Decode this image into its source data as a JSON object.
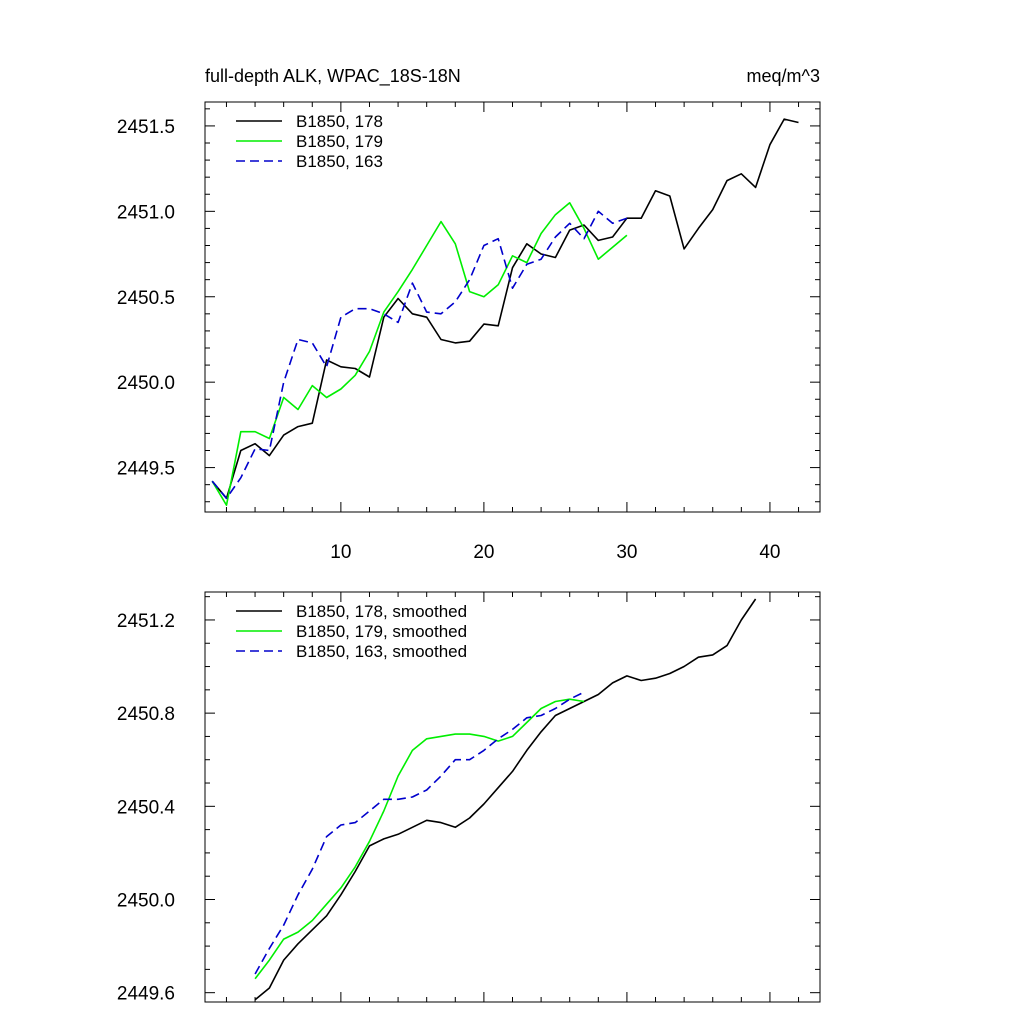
{
  "figure": {
    "title_left": "full-depth ALK, WPAC_18S-18N",
    "title_right": "meq/m^3"
  },
  "chart_data": [
    {
      "type": "line",
      "title": "full-depth ALK, WPAC_18S-18N",
      "units": "meq/m^3",
      "xlabel": "",
      "ylabel": "",
      "xlim": [
        0.5,
        43.5
      ],
      "ylim": [
        2449.24,
        2451.64
      ],
      "x_ticks": [
        10,
        20,
        30,
        40
      ],
      "x_tick_labels": [
        "10",
        "20",
        "30",
        "40"
      ],
      "x_minor_step": 2,
      "y_ticks": [
        2449.5,
        2450.0,
        2450.5,
        2451.0,
        2451.5
      ],
      "y_tick_labels": [
        "2449.5",
        "2450.0",
        "2450.5",
        "2451.0",
        "2451.5"
      ],
      "y_minor_step": 0.1,
      "grid": false,
      "legend_position": "top-left",
      "series": [
        {
          "name": "B1850, 178",
          "color": "#000000",
          "dash": "solid",
          "x": [
            1,
            2,
            3,
            4,
            5,
            6,
            7,
            8,
            9,
            10,
            11,
            12,
            13,
            14,
            15,
            16,
            17,
            18,
            19,
            20,
            21,
            22,
            23,
            24,
            25,
            26,
            27,
            28,
            29,
            30,
            31,
            32,
            33,
            34,
            35,
            36,
            37,
            38,
            39,
            40,
            41,
            42
          ],
          "values": [
            2449.42,
            2449.32,
            2449.6,
            2449.64,
            2449.57,
            2449.69,
            2449.74,
            2449.76,
            2450.13,
            2450.09,
            2450.08,
            2450.03,
            2450.38,
            2450.49,
            2450.4,
            2450.38,
            2450.25,
            2450.23,
            2450.24,
            2450.34,
            2450.33,
            2450.67,
            2450.81,
            2450.75,
            2450.73,
            2450.89,
            2450.92,
            2450.83,
            2450.85,
            2450.96,
            2450.96,
            2451.12,
            2451.09,
            2450.78,
            2450.9,
            2451.01,
            2451.18,
            2451.22,
            2451.14,
            2451.39,
            2451.54,
            2451.52
          ]
        },
        {
          "name": "B1850, 179",
          "color": "#00ee00",
          "dash": "solid",
          "x": [
            1,
            2,
            3,
            4,
            5,
            6,
            7,
            8,
            9,
            10,
            11,
            12,
            13,
            14,
            15,
            16,
            17,
            18,
            19,
            20,
            21,
            22,
            23,
            24,
            25,
            26,
            27,
            28,
            29,
            30
          ],
          "values": [
            2449.42,
            2449.28,
            2449.71,
            2449.71,
            2449.67,
            2449.91,
            2449.84,
            2449.98,
            2449.91,
            2449.96,
            2450.04,
            2450.18,
            2450.41,
            2450.53,
            2450.66,
            2450.8,
            2450.94,
            2450.81,
            2450.53,
            2450.5,
            2450.57,
            2450.74,
            2450.7,
            2450.87,
            2450.98,
            2451.05,
            2450.9,
            2450.72,
            2450.79,
            2450.86
          ]
        },
        {
          "name": "B1850, 163",
          "color": "#0000cc",
          "dash": "dashed",
          "x": [
            1,
            2,
            3,
            4,
            5,
            6,
            7,
            8,
            9,
            10,
            11,
            12,
            13,
            14,
            15,
            16,
            17,
            18,
            19,
            20,
            21,
            22,
            23,
            24,
            25,
            26,
            27,
            28,
            29,
            30
          ],
          "values": [
            2449.42,
            2449.32,
            2449.44,
            2449.61,
            2449.6,
            2450.0,
            2450.25,
            2450.23,
            2450.09,
            2450.38,
            2450.43,
            2450.43,
            2450.4,
            2450.35,
            2450.58,
            2450.41,
            2450.4,
            2450.47,
            2450.6,
            2450.8,
            2450.84,
            2450.55,
            2450.69,
            2450.72,
            2450.85,
            2450.93,
            2450.84,
            2451.0,
            2450.93,
            2450.96
          ]
        }
      ]
    },
    {
      "type": "line",
      "title": "",
      "xlabel": "",
      "ylabel": "",
      "xlim": [
        0.5,
        43.5
      ],
      "ylim": [
        2449.56,
        2451.32
      ],
      "x_ticks": [
        10,
        20,
        30,
        40
      ],
      "x_tick_labels": [],
      "x_minor_step": 2,
      "y_ticks": [
        2449.6,
        2450.0,
        2450.4,
        2450.8,
        2451.2
      ],
      "y_tick_labels": [
        "2449.6",
        "2450.0",
        "2450.4",
        "2450.8",
        "2451.2"
      ],
      "y_minor_step": 0.1,
      "grid": false,
      "legend_position": "top-left",
      "series": [
        {
          "name": "B1850, 178, smoothed",
          "color": "#000000",
          "dash": "solid",
          "x": [
            4,
            5,
            6,
            7,
            8,
            9,
            10,
            11,
            12,
            13,
            14,
            15,
            16,
            17,
            18,
            19,
            20,
            21,
            22,
            23,
            24,
            25,
            26,
            27,
            28,
            29,
            30,
            31,
            32,
            33,
            34,
            35,
            36,
            37,
            38,
            39
          ],
          "values": [
            2449.57,
            2449.62,
            2449.74,
            2449.81,
            2449.87,
            2449.93,
            2450.02,
            2450.12,
            2450.23,
            2450.26,
            2450.28,
            2450.31,
            2450.34,
            2450.33,
            2450.31,
            2450.35,
            2450.41,
            2450.48,
            2450.55,
            2450.64,
            2450.72,
            2450.79,
            2450.82,
            2450.85,
            2450.88,
            2450.93,
            2450.96,
            2450.94,
            2450.95,
            2450.97,
            2451.0,
            2451.04,
            2451.05,
            2451.09,
            2451.2,
            2451.29
          ]
        },
        {
          "name": "B1850, 179, smoothed",
          "color": "#00ee00",
          "dash": "solid",
          "x": [
            4,
            5,
            6,
            7,
            8,
            9,
            10,
            11,
            12,
            13,
            14,
            15,
            16,
            17,
            18,
            19,
            20,
            21,
            22,
            23,
            24,
            25,
            26,
            27
          ],
          "values": [
            2449.66,
            2449.74,
            2449.83,
            2449.86,
            2449.91,
            2449.98,
            2450.05,
            2450.14,
            2450.25,
            2450.38,
            2450.53,
            2450.64,
            2450.69,
            2450.7,
            2450.71,
            2450.71,
            2450.7,
            2450.68,
            2450.7,
            2450.76,
            2450.82,
            2450.85,
            2450.86,
            2450.85
          ]
        },
        {
          "name": "B1850, 163, smoothed",
          "color": "#0000cc",
          "dash": "dashed",
          "x": [
            4,
            5,
            6,
            7,
            8,
            9,
            10,
            11,
            12,
            13,
            14,
            15,
            16,
            17,
            18,
            19,
            20,
            21,
            22,
            23,
            24,
            25,
            26,
            27
          ],
          "values": [
            2449.68,
            2449.79,
            2449.89,
            2450.02,
            2450.13,
            2450.27,
            2450.32,
            2450.33,
            2450.38,
            2450.43,
            2450.43,
            2450.44,
            2450.47,
            2450.53,
            2450.6,
            2450.6,
            2450.64,
            2450.69,
            2450.73,
            2450.78,
            2450.79,
            2450.82,
            2450.86,
            2450.89
          ]
        }
      ]
    }
  ]
}
